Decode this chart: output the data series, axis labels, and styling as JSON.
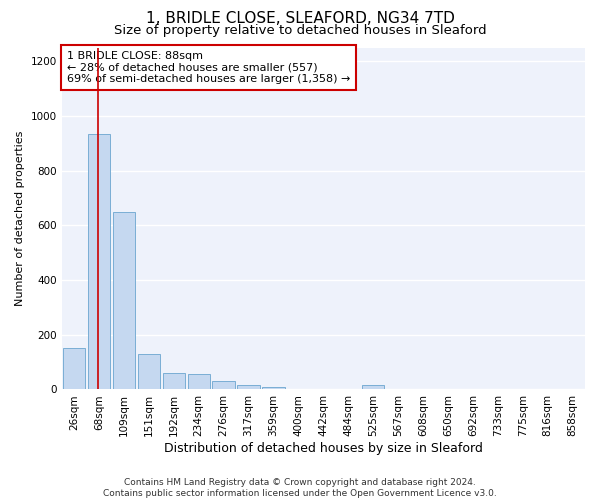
{
  "title1": "1, BRIDLE CLOSE, SLEAFORD, NG34 7TD",
  "title2": "Size of property relative to detached houses in Sleaford",
  "xlabel": "Distribution of detached houses by size in Sleaford",
  "ylabel": "Number of detached properties",
  "categories": [
    "26sqm",
    "68sqm",
    "109sqm",
    "151sqm",
    "192sqm",
    "234sqm",
    "276sqm",
    "317sqm",
    "359sqm",
    "400sqm",
    "442sqm",
    "484sqm",
    "525sqm",
    "567sqm",
    "608sqm",
    "650sqm",
    "692sqm",
    "733sqm",
    "775sqm",
    "816sqm",
    "858sqm"
  ],
  "values": [
    150,
    935,
    650,
    130,
    60,
    55,
    30,
    15,
    10,
    0,
    0,
    0,
    15,
    0,
    0,
    0,
    0,
    0,
    0,
    0,
    0
  ],
  "bar_color": "#c5d8f0",
  "bar_edge_color": "#7aaed4",
  "vline_x": 0.95,
  "vline_color": "#cc0000",
  "annotation_text": "1 BRIDLE CLOSE: 88sqm\n← 28% of detached houses are smaller (557)\n69% of semi-detached houses are larger (1,358) →",
  "annotation_box_color": "#ffffff",
  "annotation_border_color": "#cc0000",
  "ylim": [
    0,
    1250
  ],
  "yticks": [
    0,
    200,
    400,
    600,
    800,
    1000,
    1200
  ],
  "footer_text": "Contains HM Land Registry data © Crown copyright and database right 2024.\nContains public sector information licensed under the Open Government Licence v3.0.",
  "background_color": "#eef2fb",
  "fig_bg_color": "#ffffff",
  "grid_color": "#ffffff",
  "title1_fontsize": 11,
  "title2_fontsize": 9.5,
  "xlabel_fontsize": 9,
  "ylabel_fontsize": 8,
  "tick_fontsize": 7.5,
  "annot_fontsize": 8,
  "footer_fontsize": 6.5
}
